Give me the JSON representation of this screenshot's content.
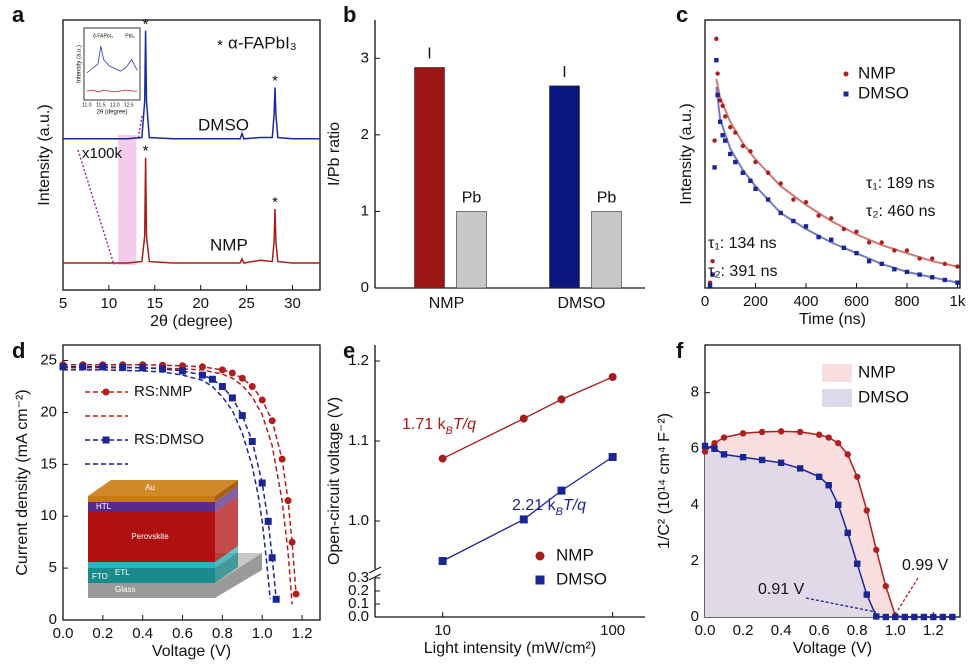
{
  "chart_data": [
    {
      "panel": "a",
      "type": "line",
      "xlabel": "2θ (degree)",
      "ylabel": "Intensity (a.u.)",
      "xlim": [
        5,
        33
      ],
      "xticks": [
        5,
        10,
        15,
        20,
        25,
        30
      ],
      "ylim": [
        0,
        100
      ],
      "x": [
        5,
        8,
        10,
        12,
        13.6,
        13.9,
        14,
        14.1,
        14.4,
        17,
        20,
        22,
        24.3,
        24.5,
        24.7,
        26.5,
        27.8,
        28.0,
        28.1,
        28.2,
        28.4,
        30,
        33
      ],
      "series": [
        {
          "name": "DMSO",
          "color": "#1a2a9a",
          "values": [
            56,
            56,
            56,
            56,
            56.5,
            70,
            96,
            70,
            56.5,
            56,
            56,
            56,
            56,
            58,
            56,
            56.5,
            56.5,
            65,
            75,
            65,
            56.5,
            56,
            56
          ]
        },
        {
          "name": "NMP",
          "color": "#a51c1c",
          "values": [
            10,
            10,
            10,
            10,
            10.5,
            20,
            49,
            20,
            10.5,
            10,
            10,
            10,
            10,
            11.5,
            10,
            11,
            10.5,
            18,
            30,
            18,
            10.5,
            10,
            10
          ]
        }
      ],
      "peak_symbol": "*",
      "peak_x": [
        14,
        28.1
      ],
      "legend_text": "α-FAPbI₃",
      "annotation": "x100k",
      "highlight": [
        11,
        13
      ],
      "inset": {
        "ylabel": "Intensity (a.u.)",
        "xlabel": "2θ (degree)",
        "xlim": [
          10.9,
          12.9
        ],
        "ylim": [
          0,
          8
        ],
        "xticks": [
          {
            "value": 11,
            "label": "11.0"
          },
          11.5,
          {
            "value": 12,
            "label": "12.0"
          },
          12.5
        ],
        "labels": [
          "δ-FAPbI₃",
          "PbI₂"
        ],
        "x": [
          11,
          11.2,
          11.4,
          11.5,
          11.6,
          11.8,
          12,
          12.2,
          12.4,
          12.6,
          12.8
        ],
        "series": [
          {
            "color": "#2a3ab0",
            "values": [
              3,
              3.5,
              4,
              6,
              4.5,
              3.8,
              3.5,
              3.2,
              3.6,
              4.5,
              3.3
            ]
          },
          {
            "color": "#b02a2a",
            "values": [
              1,
              1.1,
              0.9,
              1,
              1.1,
              1,
              0.9,
              1,
              1.1,
              1,
              1
            ]
          }
        ]
      }
    },
    {
      "panel": "b",
      "type": "bar",
      "ylabel": "I/Pb ratio",
      "categories": [
        "NMP",
        "DMSO"
      ],
      "ylim": [
        0,
        3.5
      ],
      "yticks": [
        0,
        1,
        2,
        3
      ],
      "series": [
        {
          "name": "I",
          "colors": [
            "#9b1515",
            "#0a1580"
          ],
          "values": [
            2.88,
            2.64
          ]
        },
        {
          "name": "Pb",
          "color": "#c8c8c8",
          "values": [
            1,
            1
          ]
        }
      ]
    },
    {
      "panel": "c",
      "type": "scatter",
      "xlabel": "Time (ns)",
      "ylabel": "Intensity (a.u.)",
      "xlim": [
        0,
        1010
      ],
      "xticks": [
        0,
        200,
        400,
        600,
        800,
        {
          "value": 1000,
          "label": "1k"
        }
      ],
      "ylim": [
        0,
        1
      ],
      "x": [
        20,
        30,
        38,
        45,
        50,
        60,
        70,
        80,
        100,
        120,
        150,
        180,
        200,
        250,
        300,
        350,
        400,
        450,
        500,
        550,
        600,
        650,
        700,
        750,
        800,
        850,
        900,
        950,
        1000
      ],
      "fit_x": [
        45,
        60,
        100,
        150,
        200,
        300,
        400,
        500,
        600,
        700,
        800,
        900,
        1000
      ],
      "series": [
        {
          "name": "NMP",
          "color": "#b01e1e",
          "marker": "circle",
          "values": [
            0.02,
            0.1,
            0.55,
            0.93,
            0.8,
            0.7,
            0.68,
            0.64,
            0.6,
            0.58,
            0.53,
            0.51,
            0.47,
            0.43,
            0.39,
            0.33,
            0.32,
            0.27,
            0.26,
            0.22,
            0.21,
            0.17,
            0.17,
            0.14,
            0.14,
            0.11,
            0.11,
            0.09,
            0.08
          ],
          "fit": [
            0.78,
            0.71,
            0.62,
            0.54,
            0.48,
            0.38,
            0.31,
            0.25,
            0.2,
            0.16,
            0.13,
            0.1,
            0.08
          ],
          "annotations": [
            "τ₁: 189 ns",
            "τ₂: 460 ns"
          ]
        },
        {
          "name": "DMSO",
          "color": "#1a2596",
          "marker": "square",
          "values": [
            0.01,
            0.05,
            0.45,
            0.85,
            0.72,
            0.62,
            0.57,
            0.55,
            0.5,
            0.47,
            0.43,
            0.4,
            0.37,
            0.33,
            0.28,
            0.25,
            0.23,
            0.19,
            0.18,
            0.15,
            0.13,
            0.1,
            0.09,
            0.07,
            0.06,
            0.05,
            0.04,
            0.03,
            0.02
          ],
          "fit": [
            0.75,
            0.63,
            0.52,
            0.44,
            0.38,
            0.28,
            0.22,
            0.17,
            0.13,
            0.09,
            0.06,
            0.04,
            0.02
          ],
          "annotations": [
            "τ₁: 134 ns",
            "τ₂: 391 ns"
          ]
        }
      ]
    },
    {
      "panel": "d",
      "type": "line",
      "xlabel": "Voltage (V)",
      "ylabel": "Current density (mA cm⁻²)",
      "xlim": [
        0,
        1.29
      ],
      "xticks": [
        {
          "value": 0,
          "label": "0.0"
        },
        0.2,
        0.4,
        0.6,
        0.8,
        {
          "value": 1,
          "label": "1.0"
        },
        1.2
      ],
      "ylim": [
        0,
        26.5
      ],
      "yticks": [
        0,
        5,
        10,
        15,
        20,
        25
      ],
      "series": [
        {
          "name": "RS:NMP",
          "color": "#b01e1e",
          "marker": "circle",
          "dash": true,
          "x": [
            0,
            0.1,
            0.2,
            0.3,
            0.4,
            0.5,
            0.6,
            0.7,
            0.8,
            0.85,
            0.9,
            0.95,
            1.0,
            1.05,
            1.1,
            1.13,
            1.15,
            1.17
          ],
          "values": [
            24.6,
            24.6,
            24.6,
            24.6,
            24.6,
            24.55,
            24.5,
            24.4,
            24.1,
            23.8,
            23.3,
            22.5,
            21.2,
            19.2,
            15.5,
            11.5,
            7.5,
            2.5
          ]
        },
        {
          "name": null,
          "color": "#b01e1e",
          "dash": true,
          "x": [
            0,
            0.1,
            0.2,
            0.3,
            0.4,
            0.5,
            0.6,
            0.7,
            0.8,
            0.85,
            0.9,
            0.95,
            1.0,
            1.05,
            1.1,
            1.13,
            1.15
          ],
          "values": [
            24.3,
            24.3,
            24.3,
            24.3,
            24.3,
            24.25,
            24.2,
            24.1,
            23.7,
            23.3,
            22.6,
            21.5,
            19.8,
            16.8,
            11.5,
            6.5,
            1.5
          ]
        },
        {
          "name": "RS:DMSO",
          "color": "#1a2596",
          "marker": "square",
          "dash": true,
          "x": [
            0,
            0.1,
            0.2,
            0.3,
            0.4,
            0.5,
            0.6,
            0.7,
            0.75,
            0.8,
            0.85,
            0.9,
            0.95,
            1.0,
            1.03,
            1.05,
            1.07
          ],
          "values": [
            24.4,
            24.4,
            24.4,
            24.35,
            24.3,
            24.2,
            24.0,
            23.6,
            23.2,
            22.5,
            21.4,
            19.7,
            17.2,
            13.2,
            9.5,
            6,
            2
          ]
        },
        {
          "name": null,
          "color": "#1a2596",
          "dash": true,
          "x": [
            0,
            0.1,
            0.2,
            0.3,
            0.4,
            0.5,
            0.6,
            0.7,
            0.75,
            0.8,
            0.85,
            0.9,
            0.95,
            0.98,
            1.0,
            1.02,
            1.04
          ],
          "values": [
            24.1,
            24.1,
            24.1,
            24.05,
            24.0,
            23.9,
            23.6,
            23.1,
            22.5,
            21.5,
            20.2,
            18,
            14.8,
            12,
            9.5,
            6,
            2
          ]
        }
      ],
      "device_labels": [
        "Au",
        "HTL",
        "Perovskite",
        "FTO",
        "ETL",
        "Glass"
      ]
    },
    {
      "panel": "e",
      "type": "scatter",
      "xscale": "log",
      "xlabel": "Light intensity (mW/cm²)",
      "ylabel": "Open-circuit voltage (V)",
      "xlim": [
        4,
        155
      ],
      "xticks": [
        10,
        100
      ],
      "ylim": [
        0,
        1.22
      ],
      "y_break": [
        0.3,
        0.94
      ],
      "yticks": [
        {
          "value": 0,
          "label": "0.0"
        },
        0.1,
        0.2,
        0.3,
        {
          "value": 1,
          "label": "1.0"
        },
        1.1,
        1.2
      ],
      "x": [
        10,
        30,
        50,
        100
      ],
      "series": [
        {
          "name": "NMP",
          "color": "#a51c1c",
          "marker": "circle",
          "fitline": true,
          "values": [
            1.078,
            1.128,
            1.152,
            1.18
          ],
          "annotation": [
            "1.71 k",
            "B",
            "T/q"
          ]
        },
        {
          "name": "DMSO",
          "color": "#1a2596",
          "marker": "square",
          "fitline": true,
          "values": [
            0.95,
            1.002,
            1.038,
            1.08
          ],
          "annotation": [
            "2.21 k",
            "B",
            "T/q"
          ]
        }
      ]
    },
    {
      "panel": "f",
      "type": "area",
      "xlabel": "Voltage (V)",
      "ylabel": "1/C² (10¹⁴ cm⁴ F⁻²)",
      "xlim": [
        0,
        1.34
      ],
      "xticks": [
        {
          "value": 0,
          "label": "0.0"
        },
        0.2,
        0.4,
        0.6,
        0.8,
        {
          "value": 1,
          "label": "1.0"
        },
        1.2
      ],
      "ylim": [
        0,
        9.7
      ],
      "yticks": [
        0,
        2,
        4,
        6,
        8
      ],
      "x": [
        0,
        0.05,
        0.1,
        0.2,
        0.3,
        0.4,
        0.5,
        0.6,
        0.65,
        0.7,
        0.75,
        0.8,
        0.85,
        0.9,
        0.95,
        1.0,
        1.05,
        1.1,
        1.15,
        1.2,
        1.25,
        1.3
      ],
      "series": [
        {
          "name": "NMP",
          "color": "#b01e1e",
          "fill": "#f8dede",
          "marker": "circle",
          "annotation": "0.99 V",
          "values": [
            5.9,
            6.2,
            6.4,
            6.55,
            6.6,
            6.62,
            6.6,
            6.5,
            6.4,
            6.2,
            5.8,
            5.0,
            3.8,
            2.4,
            1.1,
            0.05,
            0,
            0,
            0,
            0,
            0,
            0
          ]
        },
        {
          "name": "DMSO",
          "color": "#1a2596",
          "fill": "#ddd8ea",
          "marker": "square",
          "annotation": "0.91 V",
          "values": [
            6.1,
            6.0,
            5.8,
            5.7,
            5.6,
            5.5,
            5.3,
            5.0,
            4.7,
            4.0,
            3.0,
            1.9,
            0.8,
            0.02,
            0,
            0,
            0,
            0,
            0,
            0,
            0,
            0
          ]
        }
      ]
    }
  ]
}
